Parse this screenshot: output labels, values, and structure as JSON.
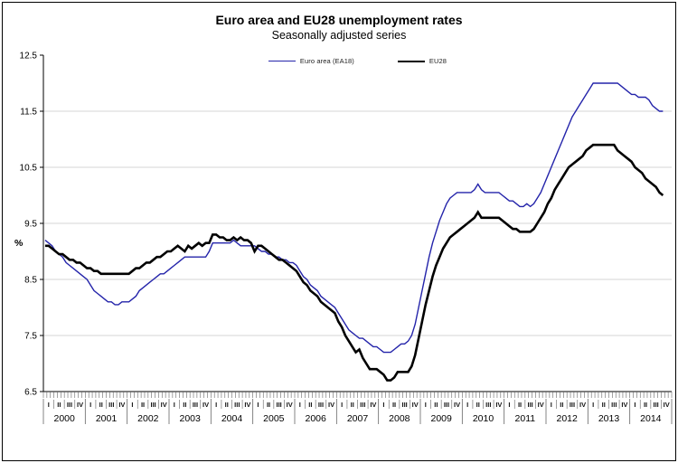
{
  "title": "Euro area and EU28 unemployment rates",
  "subtitle": "Seasonally adjusted series",
  "legend": [
    {
      "label": "Euro area (EA18)",
      "color": "#2424aa",
      "line_width": 1.4
    },
    {
      "label": "EU28",
      "color": "#000000",
      "line_width": 2.6
    }
  ],
  "chart_data": {
    "type": "line",
    "title": "Euro area and EU28 unemployment rates",
    "subtitle": "Seasonally adjusted series",
    "x_unit": "month",
    "x_start": "2000-01",
    "x_end": "2014-10",
    "years": [
      2000,
      2001,
      2002,
      2003,
      2004,
      2005,
      2006,
      2007,
      2008,
      2009,
      2010,
      2011,
      2012,
      2013,
      2014
    ],
    "quarter_labels": [
      "I",
      "II",
      "III",
      "IV"
    ],
    "y_unit_label": "%",
    "ylim": [
      6.5,
      12.5
    ],
    "y_ticks": [
      12.5,
      11.5,
      10.5,
      9.5,
      8.5,
      7.5,
      6.5
    ],
    "grid_y": [
      11.5,
      10.5,
      9.5,
      8.5,
      7.5
    ],
    "grid_color": "#d6d6d6",
    "axis_color": "#000000",
    "legend_position": "top",
    "series": [
      {
        "name": "Euro area (EA18)",
        "color": "#2424aa",
        "width": 1.4,
        "values": [
          9.2,
          9.15,
          9.1,
          9.0,
          8.95,
          8.9,
          8.8,
          8.75,
          8.7,
          8.65,
          8.6,
          8.55,
          8.5,
          8.4,
          8.3,
          8.25,
          8.2,
          8.15,
          8.1,
          8.1,
          8.05,
          8.05,
          8.1,
          8.1,
          8.1,
          8.15,
          8.2,
          8.3,
          8.35,
          8.4,
          8.45,
          8.5,
          8.55,
          8.6,
          8.6,
          8.65,
          8.7,
          8.75,
          8.8,
          8.85,
          8.9,
          8.9,
          8.9,
          8.9,
          8.9,
          8.9,
          8.9,
          9.0,
          9.15,
          9.15,
          9.15,
          9.15,
          9.15,
          9.15,
          9.2,
          9.15,
          9.1,
          9.1,
          9.1,
          9.1,
          9.1,
          9.05,
          9.0,
          9.0,
          8.95,
          8.95,
          8.9,
          8.9,
          8.85,
          8.85,
          8.8,
          8.8,
          8.75,
          8.65,
          8.55,
          8.5,
          8.4,
          8.35,
          8.3,
          8.2,
          8.15,
          8.1,
          8.05,
          8.0,
          7.9,
          7.8,
          7.7,
          7.6,
          7.55,
          7.5,
          7.45,
          7.45,
          7.4,
          7.35,
          7.3,
          7.3,
          7.25,
          7.2,
          7.2,
          7.2,
          7.25,
          7.3,
          7.35,
          7.35,
          7.4,
          7.5,
          7.7,
          8.0,
          8.3,
          8.6,
          8.9,
          9.15,
          9.35,
          9.55,
          9.7,
          9.85,
          9.95,
          10.0,
          10.05,
          10.05,
          10.05,
          10.05,
          10.05,
          10.1,
          10.2,
          10.1,
          10.05,
          10.05,
          10.05,
          10.05,
          10.05,
          10.0,
          9.95,
          9.9,
          9.9,
          9.85,
          9.8,
          9.8,
          9.85,
          9.8,
          9.85,
          9.95,
          10.05,
          10.2,
          10.35,
          10.5,
          10.65,
          10.8,
          10.95,
          11.1,
          11.25,
          11.4,
          11.5,
          11.6,
          11.7,
          11.8,
          11.9,
          12.0,
          12.0,
          12.0,
          12.0,
          12.0,
          12.0,
          12.0,
          12.0,
          11.95,
          11.9,
          11.85,
          11.8,
          11.8,
          11.75,
          11.75,
          11.75,
          11.7,
          11.6,
          11.55,
          11.5,
          11.5
        ]
      },
      {
        "name": "EU28",
        "color": "#000000",
        "width": 2.6,
        "values": [
          9.1,
          9.1,
          9.05,
          9.0,
          8.95,
          8.95,
          8.9,
          8.85,
          8.85,
          8.8,
          8.8,
          8.75,
          8.7,
          8.7,
          8.65,
          8.65,
          8.6,
          8.6,
          8.6,
          8.6,
          8.6,
          8.6,
          8.6,
          8.6,
          8.6,
          8.65,
          8.7,
          8.7,
          8.75,
          8.8,
          8.8,
          8.85,
          8.9,
          8.9,
          8.95,
          9.0,
          9.0,
          9.05,
          9.1,
          9.05,
          9.0,
          9.1,
          9.05,
          9.1,
          9.15,
          9.1,
          9.15,
          9.15,
          9.3,
          9.3,
          9.25,
          9.25,
          9.2,
          9.2,
          9.25,
          9.2,
          9.25,
          9.2,
          9.2,
          9.15,
          9.0,
          9.1,
          9.1,
          9.05,
          9.0,
          8.95,
          8.9,
          8.85,
          8.85,
          8.8,
          8.75,
          8.7,
          8.65,
          8.55,
          8.45,
          8.4,
          8.3,
          8.25,
          8.2,
          8.1,
          8.05,
          8.0,
          7.95,
          7.9,
          7.75,
          7.65,
          7.5,
          7.4,
          7.3,
          7.2,
          7.25,
          7.1,
          7.0,
          6.9,
          6.9,
          6.9,
          6.85,
          6.8,
          6.7,
          6.7,
          6.75,
          6.85,
          6.85,
          6.85,
          6.85,
          6.95,
          7.15,
          7.45,
          7.75,
          8.05,
          8.3,
          8.55,
          8.75,
          8.9,
          9.05,
          9.15,
          9.25,
          9.3,
          9.35,
          9.4,
          9.45,
          9.5,
          9.55,
          9.6,
          9.7,
          9.6,
          9.6,
          9.6,
          9.6,
          9.6,
          9.6,
          9.55,
          9.5,
          9.45,
          9.4,
          9.4,
          9.35,
          9.35,
          9.35,
          9.35,
          9.4,
          9.5,
          9.6,
          9.7,
          9.85,
          9.95,
          10.1,
          10.2,
          10.3,
          10.4,
          10.5,
          10.55,
          10.6,
          10.65,
          10.7,
          10.8,
          10.85,
          10.9,
          10.9,
          10.9,
          10.9,
          10.9,
          10.9,
          10.9,
          10.8,
          10.75,
          10.7,
          10.65,
          10.6,
          10.5,
          10.45,
          10.4,
          10.3,
          10.25,
          10.2,
          10.15,
          10.05,
          10.0
        ]
      }
    ]
  }
}
